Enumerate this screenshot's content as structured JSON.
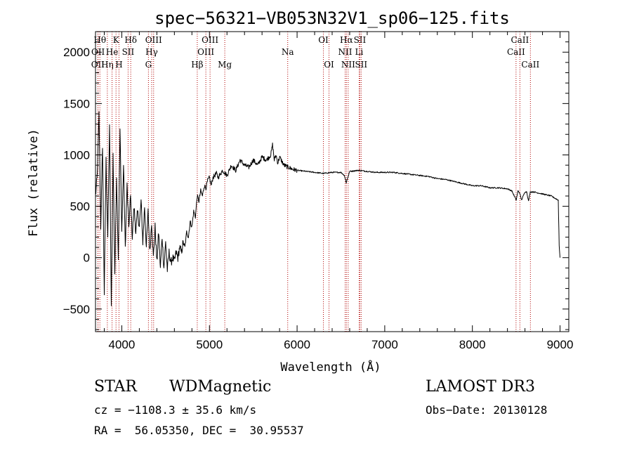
{
  "chart_data": {
    "type": "line",
    "title": "spec−56321−VB053N32V1_sp06−125.fits",
    "xlabel": "Wavelength (Å)",
    "ylabel": "Flux (relative)",
    "xlim": [
      3700,
      9100
    ],
    "ylim": [
      -720,
      2200
    ],
    "xticks": [
      4000,
      5000,
      6000,
      7000,
      8000,
      9000
    ],
    "yticks": [
      -500,
      0,
      500,
      1000,
      1500,
      2000
    ],
    "series": [
      {
        "name": "flux",
        "x": [
          3700,
          3720,
          3740,
          3760,
          3780,
          3800,
          3820,
          3840,
          3860,
          3880,
          3900,
          3920,
          3940,
          3960,
          3980,
          4000,
          4020,
          4040,
          4060,
          4080,
          4100,
          4120,
          4140,
          4160,
          4180,
          4200,
          4220,
          4240,
          4260,
          4280,
          4300,
          4320,
          4340,
          4360,
          4380,
          4400,
          4420,
          4440,
          4460,
          4480,
          4500,
          4520,
          4540,
          4560,
          4580,
          4600,
          4620,
          4640,
          4660,
          4680,
          4700,
          4720,
          4740,
          4760,
          4780,
          4800,
          4820,
          4840,
          4860,
          4880,
          4900,
          4920,
          4940,
          4960,
          4980,
          5000,
          5020,
          5040,
          5060,
          5080,
          5100,
          5150,
          5200,
          5250,
          5300,
          5350,
          5400,
          5450,
          5500,
          5550,
          5600,
          5650,
          5700,
          5720,
          5740,
          5760,
          5780,
          5800,
          5850,
          5900,
          5950,
          6000,
          6100,
          6200,
          6300,
          6400,
          6500,
          6540,
          6560,
          6600,
          6700,
          6800,
          6900,
          7000,
          7100,
          7200,
          7300,
          7400,
          7500,
          7600,
          7700,
          7800,
          7900,
          8000,
          8100,
          8200,
          8300,
          8400,
          8450,
          8500,
          8520,
          8540,
          8560,
          8600,
          8620,
          8640,
          8660,
          8700,
          8800,
          8900,
          8980,
          8990,
          9000
        ],
        "values": [
          600,
          800,
          1400,
          300,
          1100,
          -350,
          950,
          200,
          1300,
          -500,
          1000,
          -150,
          800,
          0,
          1250,
          250,
          900,
          100,
          700,
          300,
          600,
          200,
          500,
          250,
          450,
          300,
          550,
          150,
          500,
          100,
          450,
          50,
          350,
          0,
          300,
          -50,
          250,
          -100,
          200,
          -100,
          150,
          -120,
          50,
          -50,
          0,
          -40,
          50,
          0,
          100,
          50,
          150,
          100,
          250,
          200,
          350,
          300,
          450,
          400,
          600,
          550,
          650,
          600,
          700,
          680,
          750,
          780,
          700,
          780,
          800,
          820,
          780,
          850,
          800,
          900,
          850,
          950,
          900,
          880,
          950,
          900,
          980,
          950,
          1000,
          1100,
          950,
          1000,
          920,
          980,
          900,
          880,
          860,
          850,
          840,
          830,
          820,
          830,
          830,
          800,
          730,
          840,
          850,
          840,
          830,
          830,
          830,
          820,
          810,
          800,
          790,
          770,
          760,
          740,
          720,
          700,
          700,
          680,
          680,
          670,
          650,
          560,
          650,
          630,
          560,
          640,
          640,
          550,
          640,
          640,
          620,
          600,
          560,
          120,
          0
        ]
      }
    ],
    "line_markers": [
      {
        "label": "OII",
        "wavelength": 3727,
        "row": 3
      },
      {
        "label": "Hθ",
        "wavelength": 3750,
        "row": 1
      },
      {
        "label": "OII",
        "wavelength": 3729,
        "row": 2
      },
      {
        "label": "Hη",
        "wavelength": 3835,
        "row": 3
      },
      {
        "label": "He",
        "wavelength": 3889,
        "row": 2
      },
      {
        "label": "K",
        "wavelength": 3934,
        "row": 1
      },
      {
        "label": "H",
        "wavelength": 3968,
        "row": 3
      },
      {
        "label": "SII",
        "wavelength": 4072,
        "row": 2
      },
      {
        "label": "Hδ",
        "wavelength": 4102,
        "row": 1
      },
      {
        "label": "G",
        "wavelength": 4304,
        "row": 3
      },
      {
        "label": "Hγ",
        "wavelength": 4341,
        "row": 2
      },
      {
        "label": "OIII",
        "wavelength": 4363,
        "row": 1
      },
      {
        "label": "Hβ",
        "wavelength": 4861,
        "row": 3
      },
      {
        "label": "OIII",
        "wavelength": 4959,
        "row": 2
      },
      {
        "label": "OIII",
        "wavelength": 5007,
        "row": 1
      },
      {
        "label": "Mg",
        "wavelength": 5175,
        "row": 3
      },
      {
        "label": "Na",
        "wavelength": 5893,
        "row": 2
      },
      {
        "label": "OI",
        "wavelength": 6300,
        "row": 1
      },
      {
        "label": "OI",
        "wavelength": 6364,
        "row": 3
      },
      {
        "label": "NII",
        "wavelength": 6548,
        "row": 2
      },
      {
        "label": "Hα",
        "wavelength": 6563,
        "row": 1
      },
      {
        "label": "NII",
        "wavelength": 6583,
        "row": 3
      },
      {
        "label": "SII",
        "wavelength": 6716,
        "row": 1
      },
      {
        "label": "Li",
        "wavelength": 6708,
        "row": 2
      },
      {
        "label": "SII",
        "wavelength": 6731,
        "row": 3
      },
      {
        "label": "CaII",
        "wavelength": 8498,
        "row": 2
      },
      {
        "label": "CaII",
        "wavelength": 8542,
        "row": 1
      },
      {
        "label": "CaII",
        "wavelength": 8662,
        "row": 3
      }
    ],
    "grid": false,
    "legend": "none"
  },
  "info": {
    "class": "STAR",
    "subclass": "WDMagnetic",
    "survey": "LAMOST DR3",
    "cz": "cz = −1108.3 ± 35.6 km/s",
    "obs_date": "Obs−Date: 20130128",
    "radec": "RA =  56.05350, DEC =  30.95537"
  }
}
